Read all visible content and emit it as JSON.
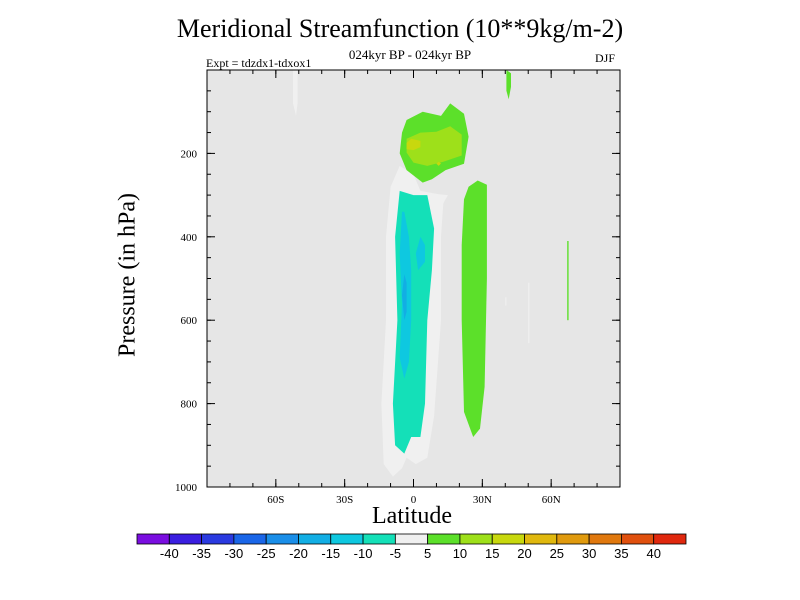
{
  "chart_data": {
    "type": "contour",
    "title": "Meridional Streamfunction (10**9kg/m-2)",
    "subtitle": "024kyr BP - 024kyr BP",
    "experiment": "Expt = tdzdx1-tdxox1",
    "season": "DJF",
    "xlabel": "Latitude",
    "ylabel": "Pressure (in hPa)",
    "xlim": [
      -90,
      90
    ],
    "ylim": [
      1000,
      0
    ],
    "x_ticks": [
      {
        "value": -60,
        "label": "60S"
      },
      {
        "value": -30,
        "label": "30S"
      },
      {
        "value": 0,
        "label": "0"
      },
      {
        "value": 30,
        "label": "30N"
      },
      {
        "value": 60,
        "label": "60N"
      }
    ],
    "y_ticks": [
      {
        "value": 200,
        "label": "200"
      },
      {
        "value": 400,
        "label": "400"
      },
      {
        "value": 600,
        "label": "600"
      },
      {
        "value": 800,
        "label": "800"
      },
      {
        "value": 1000,
        "label": "1000"
      }
    ],
    "background_color": "#e6e6e6",
    "colorbar": {
      "levels": [
        "-40",
        "-35",
        "-30",
        "-25",
        "-20",
        "-15",
        "-10",
        "-5",
        "5",
        "10",
        "15",
        "20",
        "25",
        "30",
        "35",
        "40"
      ],
      "colors": [
        "#7a0ee0",
        "#3a1ee0",
        "#2a3ae0",
        "#1a66e8",
        "#1a8ee8",
        "#12aee4",
        "#0ec8e0",
        "#14e0b8",
        "#f0f0f0",
        "#5ce02a",
        "#9ee01a",
        "#c8d80e",
        "#e0b80e",
        "#e09a0e",
        "#e0780e",
        "#e0500e",
        "#e0280e"
      ]
    },
    "regions": [
      {
        "name": "negative-core",
        "level_range": [
          -20,
          -5
        ],
        "lat_range": [
          -14,
          10
        ],
        "p_range": [
          230,
          970
        ]
      },
      {
        "name": "upper-positive-cell",
        "level_range": [
          5,
          15
        ],
        "lat_range": [
          -6,
          24
        ],
        "p_range": [
          80,
          320
        ]
      },
      {
        "name": "northern-positive-column",
        "level_range": [
          5,
          10
        ],
        "lat_range": [
          21,
          33
        ],
        "p_range": [
          260,
          880
        ]
      },
      {
        "name": "high-lat-south-sliver",
        "level_range": [
          -10,
          -5
        ],
        "lat_range": [
          -53,
          -51
        ],
        "p_range": [
          0,
          110
        ]
      },
      {
        "name": "high-lat-north-sliver",
        "level_range": [
          5,
          10
        ],
        "lat_range": [
          39,
          41
        ],
        "p_range": [
          0,
          70
        ]
      }
    ]
  }
}
